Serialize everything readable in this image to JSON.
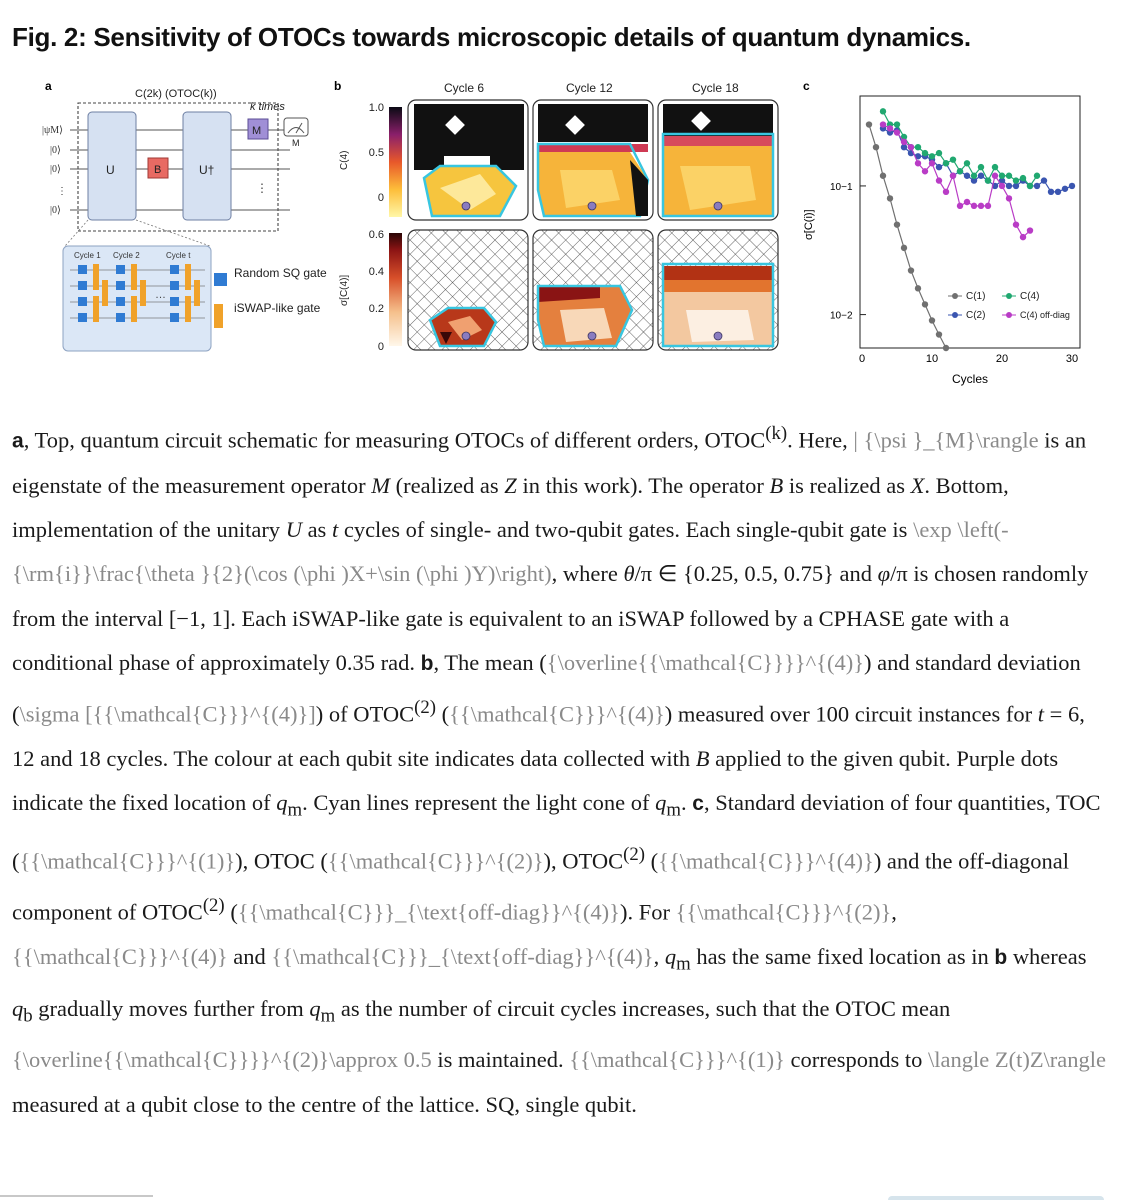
{
  "figure_title": "Fig. 2: Sensitivity of OTOCs towards microscopic details of quantum dynamics.",
  "panel_a": {
    "label": "a",
    "circuit_header": "C(2k) (OTOC(k))",
    "k_times": "k times",
    "state_labels": [
      "|ψM⟩",
      "|0⟩",
      "|0⟩",
      "⋮",
      "|0⟩"
    ],
    "gate_U": "U",
    "gate_B": "B",
    "gate_Udag": "U†",
    "gate_M": "M",
    "meter_label": "M",
    "cycle_labels": [
      "Cycle 1",
      "Cycle 2",
      "Cycle t"
    ],
    "legend_sq": "Random SQ gate",
    "legend_iswap": "iSWAP-like gate"
  },
  "panel_b": {
    "label": "b",
    "cycle_titles": [
      "Cycle 6",
      "Cycle 12",
      "Cycle 18"
    ],
    "top_ylabel": "C(4)",
    "top_ticks": [
      "1.0",
      "0.5",
      "0"
    ],
    "bottom_ylabel": "σ[C(4)]",
    "bottom_ticks": [
      "0.6",
      "0.4",
      "0.2",
      "0"
    ],
    "colors": {
      "cyan": "#38c6e0",
      "purple_dot": "#8a7cc0"
    }
  },
  "panel_c": {
    "label": "c",
    "ylabel": "σ[C(i)]",
    "xlabel": "Cycles",
    "xticks": [
      "0",
      "10",
      "20",
      "30"
    ],
    "yticks": [
      "10−1",
      "10−2"
    ],
    "legend": [
      "C(1)",
      "C(2)",
      "C(4)",
      "C(4) off-diag"
    ]
  },
  "chart_data": {
    "type": "line",
    "title": "",
    "xlabel": "Cycles",
    "ylabel": "σ[C(i)]",
    "yscale": "log",
    "xlim": [
      0,
      31
    ],
    "ylim": [
      0.0055,
      0.5
    ],
    "series": [
      {
        "name": "C(1)",
        "color": "#707070",
        "x": [
          1,
          2,
          3,
          4,
          5,
          6,
          7,
          8,
          9,
          10,
          11,
          12
        ],
        "y": [
          0.3,
          0.2,
          0.12,
          0.08,
          0.05,
          0.033,
          0.022,
          0.016,
          0.012,
          0.009,
          0.007,
          0.0055
        ]
      },
      {
        "name": "C(2)",
        "color": "#3a55b0",
        "x": [
          3,
          4,
          5,
          6,
          7,
          8,
          9,
          10,
          11,
          12,
          13,
          14,
          15,
          16,
          17,
          18,
          19,
          20,
          21,
          22,
          23,
          24,
          25,
          26,
          27,
          28,
          29,
          30
        ],
        "y": [
          0.28,
          0.26,
          0.27,
          0.2,
          0.18,
          0.17,
          0.17,
          0.16,
          0.14,
          0.15,
          0.12,
          0.13,
          0.12,
          0.11,
          0.12,
          0.11,
          0.1,
          0.11,
          0.1,
          0.1,
          0.11,
          0.1,
          0.1,
          0.11,
          0.09,
          0.09,
          0.095,
          0.1
        ]
      },
      {
        "name": "C(4)",
        "color": "#20a870",
        "x": [
          3,
          4,
          5,
          6,
          7,
          8,
          9,
          10,
          11,
          12,
          13,
          14,
          15,
          16,
          17,
          18,
          19,
          20,
          21,
          22,
          23,
          24,
          25
        ],
        "y": [
          0.38,
          0.3,
          0.3,
          0.24,
          0.2,
          0.2,
          0.18,
          0.17,
          0.18,
          0.15,
          0.16,
          0.13,
          0.15,
          0.12,
          0.14,
          0.11,
          0.14,
          0.12,
          0.12,
          0.11,
          0.115,
          0.1,
          0.12
        ]
      },
      {
        "name": "C(4) off-diag",
        "color": "#b93cc6",
        "x": [
          3,
          4,
          5,
          6,
          7,
          8,
          9,
          10,
          11,
          12,
          13,
          14,
          15,
          16,
          17,
          18,
          19,
          20,
          21,
          22,
          23,
          24
        ],
        "y": [
          0.3,
          0.28,
          0.26,
          0.22,
          0.2,
          0.15,
          0.13,
          0.15,
          0.11,
          0.09,
          0.12,
          0.07,
          0.075,
          0.07,
          0.07,
          0.07,
          0.12,
          0.1,
          0.08,
          0.05,
          0.04,
          0.045
        ]
      }
    ]
  },
  "caption_parts": {
    "a_head": "a",
    "a1": ", Top, quantum circuit schematic for measuring OTOCs of different orders, OTOC",
    "a_sup": "(k)",
    "a2": ". Here, ",
    "tex_psi": "| {\\psi }_{M}\\rangle",
    "a3": " is an eigenstate of the measurement operator ",
    "var_M": "M",
    "a4": " (realized as ",
    "var_Z": "Z",
    "a5": " in this work). The operator ",
    "var_B1": "B",
    "a6": " is realized as ",
    "var_X": "X",
    "a7": ". Bottom, implementation of the unitary ",
    "var_U": "U",
    "a8": " as ",
    "var_t1": "t",
    "a9": " cycles of single- and two-qubit gates. Each single-qubit gate is ",
    "tex_exp": "\\exp \\left(-{\\rm{i}}\\frac{\\theta }{2}(\\cos (\\phi )X+\\sin (\\phi )Y)\\right)",
    "a10": ", where ",
    "var_theta": "θ",
    "a11": "/π ∈ {0.25, 0.5, 0.75} and ",
    "var_phi": "φ",
    "a12": "/π is chosen randomly from the interval [−1, 1]. Each iSWAP-like gate is equivalent to an iSWAP followed by a CPHASE gate with a conditional phase of approximately 0.35 rad. ",
    "b_head": "b",
    "b1": ", The mean (",
    "tex_mean4": "{\\overline{{\\mathcal{C}}}}^{(4)}",
    "b2": ") and standard deviation (",
    "tex_sigma4": "\\sigma [{{\\mathcal{C}}}^{(4)}]",
    "b3": ") of OTOC",
    "b_sup": "(2)",
    "b4": " (",
    "tex_c4a": "{{\\mathcal{C}}}^{(4)}",
    "b5": ") measured over 100 circuit instances for ",
    "var_t2": "t",
    "b6": " = 6, 12 and 18 cycles. The colour at each qubit site indicates data collected with ",
    "var_B2": "B",
    "b7": " applied to the given qubit. Purple dots indicate the fixed location of ",
    "var_qm1": "q",
    "sub_m1": "m",
    "b8": ". Cyan lines represent the light cone of ",
    "var_qm2": "q",
    "sub_m2": "m",
    "b9": ". ",
    "c_head": "c",
    "c1": ", Standard deviation of four quantities, TOC (",
    "tex_c1": "{{\\mathcal{C}}}^{(1)}",
    "c2": "), OTOC (",
    "tex_c2": "{{\\mathcal{C}}}^{(2)}",
    "c3": "), OTOC",
    "c_sup": "(2)",
    "c4": " (",
    "tex_c4b": "{{\\mathcal{C}}}^{(4)}",
    "c5": ") and the off-diagonal component of OTOC",
    "c_sup2": "(2)",
    "c6": " (",
    "tex_offdiag1": "{{\\mathcal{C}}}_{\\text{off-diag}}^{(4)}",
    "c7": "). For ",
    "tex_c2b": "{{\\mathcal{C}}}^{(2)}",
    "c8": ", ",
    "tex_c4c": "{{\\mathcal{C}}}^{(4)}",
    "c9": " and ",
    "tex_offdiag2": "{{\\mathcal{C}}}_{\\text{off-diag}}^{(4)}",
    "c10": ", ",
    "var_qm3": "q",
    "sub_m3": "m",
    "c11": " has the same fixed location as in ",
    "b_ref": "b",
    "c12": " whereas ",
    "var_qb": "q",
    "sub_b": "b",
    "c13": " gradually moves further from ",
    "var_qm4": "q",
    "sub_m4": "m",
    "c14": " as the number of circuit cycles increases, such that the OTOC mean ",
    "tex_mean2": "{\\overline{{\\mathcal{C}}}}^{(2)}\\approx 0.5",
    "c15": " is maintained. ",
    "tex_c1b": "{{\\mathcal{C}}}^{(1)}",
    "c16": " corresponds to ",
    "tex_zz": "\\langle Z(t)Z\\rangle",
    "c17": " measured at a qubit close to the centre of the lattice. SQ, single qubit."
  }
}
